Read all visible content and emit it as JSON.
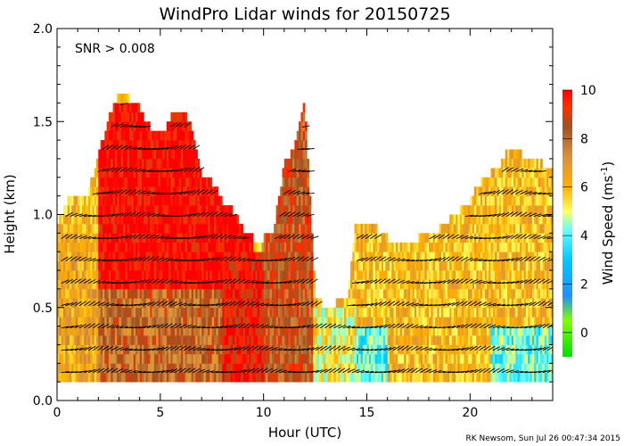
{
  "chart_data": {
    "type": "heatmap",
    "title": "WindPro Lidar winds for 20150725",
    "xlabel": "Hour (UTC)",
    "ylabel": "Height (km)",
    "xlim": [
      0,
      24
    ],
    "ylim": [
      0.0,
      2.0
    ],
    "x_ticks": [
      0,
      5,
      10,
      15,
      20
    ],
    "x_tick_labels": [
      "0",
      "5",
      "10",
      "15",
      "20"
    ],
    "y_ticks": [
      0.0,
      0.5,
      1.0,
      1.5,
      2.0
    ],
    "y_tick_labels": [
      "0.0",
      "0.5",
      "1.0",
      "1.5",
      "2.0"
    ],
    "annotation": "SNR > 0.008",
    "colorbar": {
      "label_prefix": "Wind Speed (ms",
      "label_exponent": "-1",
      "label_suffix": ")",
      "min": -1,
      "max": 10,
      "ticks": [
        0,
        2,
        4,
        6,
        8,
        10
      ],
      "tick_labels": [
        "0",
        "2",
        "4",
        "6",
        "8",
        "10"
      ],
      "stops": [
        {
          "value": -1,
          "color": "#00e000"
        },
        {
          "value": 0.5,
          "color": "#80ff00"
        },
        {
          "value": 1.5,
          "color": "#2090ff"
        },
        {
          "value": 3,
          "color": "#00c8ff"
        },
        {
          "value": 4.2,
          "color": "#60ffff"
        },
        {
          "value": 5,
          "color": "#ffff60"
        },
        {
          "value": 6,
          "color": "#ffb000"
        },
        {
          "value": 7.3,
          "color": "#d89040"
        },
        {
          "value": 8.5,
          "color": "#a05020"
        },
        {
          "value": 9.3,
          "color": "#ff3000"
        },
        {
          "value": 10,
          "color": "#ff0000"
        }
      ]
    },
    "coverage_tops_km": [
      {
        "hour": 0.0,
        "top": 0.92
      },
      {
        "hour": 0.5,
        "top": 1.05
      },
      {
        "hour": 1.0,
        "top": 1.08
      },
      {
        "hour": 1.5,
        "top": 1.1
      },
      {
        "hour": 2.0,
        "top": 1.3
      },
      {
        "hour": 2.5,
        "top": 1.5
      },
      {
        "hour": 3.0,
        "top": 1.62
      },
      {
        "hour": 3.5,
        "top": 1.6
      },
      {
        "hour": 4.0,
        "top": 1.55
      },
      {
        "hour": 4.5,
        "top": 1.45
      },
      {
        "hour": 5.0,
        "top": 1.4
      },
      {
        "hour": 5.5,
        "top": 1.5
      },
      {
        "hour": 6.0,
        "top": 1.55
      },
      {
        "hour": 6.5,
        "top": 1.45
      },
      {
        "hour": 7.0,
        "top": 1.2
      },
      {
        "hour": 7.5,
        "top": 1.15
      },
      {
        "hour": 8.0,
        "top": 1.05
      },
      {
        "hour": 8.5,
        "top": 1.0
      },
      {
        "hour": 9.0,
        "top": 0.9
      },
      {
        "hour": 9.5,
        "top": 0.85
      },
      {
        "hour": 10.0,
        "top": 0.85
      },
      {
        "hour": 10.5,
        "top": 0.9
      },
      {
        "hour": 11.0,
        "top": 1.25
      },
      {
        "hour": 11.5,
        "top": 1.35
      },
      {
        "hour": 12.0,
        "top": 1.6
      },
      {
        "hour": 12.5,
        "top": 0.55
      },
      {
        "hour": 13.0,
        "top": 0.45
      },
      {
        "hour": 13.5,
        "top": 0.5
      },
      {
        "hour": 14.0,
        "top": 0.5
      },
      {
        "hour": 14.5,
        "top": 0.95
      },
      {
        "hour": 15.0,
        "top": 0.95
      },
      {
        "hour": 15.5,
        "top": 0.9
      },
      {
        "hour": 16.0,
        "top": 0.85
      },
      {
        "hour": 16.5,
        "top": 0.8
      },
      {
        "hour": 17.0,
        "top": 0.85
      },
      {
        "hour": 17.5,
        "top": 0.85
      },
      {
        "hour": 18.0,
        "top": 0.9
      },
      {
        "hour": 18.5,
        "top": 0.9
      },
      {
        "hour": 19.0,
        "top": 0.95
      },
      {
        "hour": 19.5,
        "top": 1.0
      },
      {
        "hour": 20.0,
        "top": 1.05
      },
      {
        "hour": 20.5,
        "top": 1.15
      },
      {
        "hour": 21.0,
        "top": 1.2
      },
      {
        "hour": 21.5,
        "top": 1.25
      },
      {
        "hour": 22.0,
        "top": 1.35
      },
      {
        "hour": 22.5,
        "top": 1.3
      },
      {
        "hour": 23.0,
        "top": 1.3
      },
      {
        "hour": 23.5,
        "top": 1.25
      },
      {
        "hour": 24.0,
        "top": 1.2
      }
    ],
    "speed_regions": [
      {
        "hours": [
          0,
          2
        ],
        "heights": [
          0.1,
          0.9
        ],
        "speed": 6.5
      },
      {
        "hours": [
          2,
          9.5
        ],
        "heights": [
          0.6,
          1.6
        ],
        "speed": 10
      },
      {
        "hours": [
          2,
          8
        ],
        "heights": [
          0.1,
          0.6
        ],
        "speed": 8
      },
      {
        "hours": [
          8,
          10
        ],
        "heights": [
          0.1,
          0.8
        ],
        "speed": 9.5
      },
      {
        "hours": [
          10,
          12.4
        ],
        "heights": [
          0.1,
          1.6
        ],
        "speed": 8.5
      },
      {
        "hours": [
          12.4,
          14.5
        ],
        "heights": [
          0.1,
          0.5
        ],
        "speed": 5.2
      },
      {
        "hours": [
          14.5,
          16
        ],
        "heights": [
          0.1,
          0.4
        ],
        "speed": 4
      },
      {
        "hours": [
          14.5,
          19
        ],
        "heights": [
          0.4,
          0.95
        ],
        "speed": 6
      },
      {
        "hours": [
          16,
          21
        ],
        "heights": [
          0.1,
          0.4
        ],
        "speed": 6
      },
      {
        "hours": [
          19,
          24
        ],
        "heights": [
          0.4,
          1.35
        ],
        "speed": 6
      },
      {
        "hours": [
          21,
          24
        ],
        "heights": [
          0.1,
          0.4
        ],
        "speed": 4.2
      }
    ],
    "barb_levels_km": [
      0.15,
      0.27,
      0.39,
      0.51,
      0.63,
      0.75,
      0.87,
      0.99,
      1.11,
      1.23,
      1.35,
      1.47,
      1.59
    ]
  },
  "footer": {
    "credit": "RK Newsom, Sun Jul 26 00:47:34 2015"
  }
}
